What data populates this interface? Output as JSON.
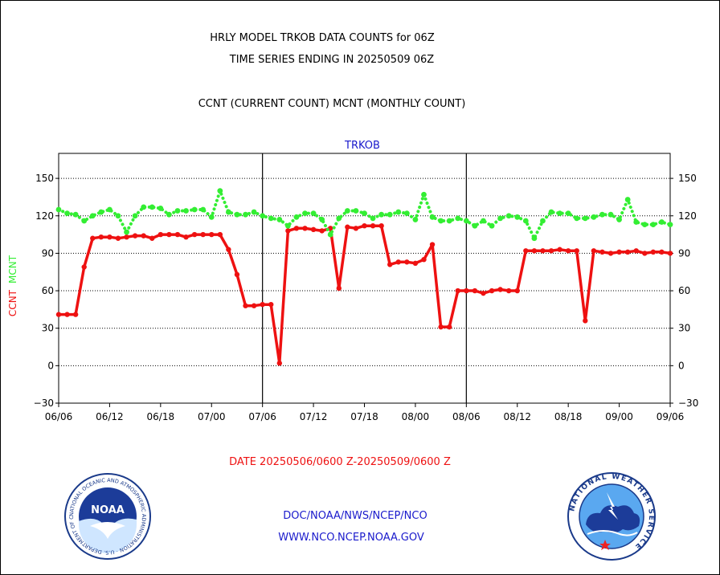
{
  "chart_data": {
    "type": "line",
    "title_lines": [
      "HRLY MODEL TRKOB DATA COUNTS for 06Z",
      "TIME SERIES ENDING IN 20250509 06Z"
    ],
    "subtitle": "CCNT (CURRENT COUNT) MCNT (MONTHLY COUNT)",
    "panel_label": "TRKOB",
    "ylabel_ccnt": "CCNT",
    "ylabel_mcnt": "MCNT",
    "date_range": "DATE 20250506/0600 Z-20250509/0600 Z",
    "ylim": [
      -30,
      170
    ],
    "yticks": [
      -30,
      0,
      30,
      60,
      90,
      120,
      150
    ],
    "ytick_labels": [
      "−30",
      "0",
      "30",
      "60",
      "90",
      "120",
      "150"
    ],
    "xlim": [
      0,
      72
    ],
    "xticks": [
      0,
      6,
      12,
      18,
      24,
      30,
      36,
      42,
      48,
      54,
      60,
      66,
      72
    ],
    "xtick_labels": [
      "06/06",
      "06/12",
      "06/18",
      "07/00",
      "07/06",
      "07/12",
      "07/18",
      "08/00",
      "08/06",
      "08/12",
      "08/18",
      "09/00",
      "09/06"
    ],
    "day_separators": [
      24,
      48
    ],
    "grid": "horizontal dotted",
    "series": [
      {
        "name": "CCNT",
        "color": "#ee1111",
        "style": "solid",
        "x": [
          0,
          1,
          2,
          3,
          4,
          5,
          6,
          7,
          8,
          9,
          10,
          11,
          12,
          13,
          14,
          15,
          16,
          17,
          18,
          19,
          20,
          21,
          22,
          23,
          24,
          25,
          26,
          27,
          28,
          29,
          30,
          31,
          32,
          33,
          34,
          35,
          36,
          37,
          38,
          39,
          40,
          41,
          42,
          43,
          44,
          45,
          46,
          47,
          48,
          49,
          50,
          51,
          52,
          53,
          54,
          55,
          56,
          57,
          58,
          59,
          60,
          61,
          62,
          63,
          64,
          65,
          66,
          67,
          68,
          69,
          70,
          71,
          72
        ],
        "values": [
          41,
          41,
          41,
          79,
          102,
          103,
          103,
          102,
          103,
          104,
          104,
          102,
          105,
          105,
          105,
          103,
          105,
          105,
          105,
          105,
          93,
          73,
          48,
          48,
          49,
          49,
          2,
          108,
          110,
          110,
          109,
          108,
          110,
          62,
          111,
          110,
          112,
          112,
          112,
          81,
          83,
          83,
          82,
          85,
          97,
          31,
          31,
          60,
          60,
          60,
          58,
          60,
          61,
          60,
          60,
          92,
          92,
          92,
          92,
          93,
          92,
          92,
          36,
          92,
          91,
          90,
          91,
          91,
          92,
          90,
          91,
          91,
          90
        ]
      },
      {
        "name": "MCNT",
        "color": "#33ee33",
        "style": "dotted",
        "x": [
          0,
          1,
          2,
          3,
          4,
          5,
          6,
          7,
          8,
          9,
          10,
          11,
          12,
          13,
          14,
          15,
          16,
          17,
          18,
          19,
          20,
          21,
          22,
          23,
          24,
          25,
          26,
          27,
          28,
          29,
          30,
          31,
          32,
          33,
          34,
          35,
          36,
          37,
          38,
          39,
          40,
          41,
          42,
          43,
          44,
          45,
          46,
          47,
          48,
          49,
          50,
          51,
          52,
          53,
          54,
          55,
          56,
          57,
          58,
          59,
          60,
          61,
          62,
          63,
          64,
          65,
          66,
          67,
          68,
          69,
          70,
          71,
          72
        ],
        "values": [
          125,
          122,
          121,
          116,
          120,
          123,
          125,
          120,
          107,
          120,
          127,
          127,
          126,
          121,
          124,
          124,
          125,
          125,
          119,
          140,
          123,
          121,
          121,
          123,
          120,
          118,
          117,
          112,
          119,
          122,
          122,
          117,
          105,
          118,
          124,
          124,
          122,
          118,
          121,
          121,
          123,
          122,
          117,
          137,
          119,
          116,
          116,
          118,
          116,
          112,
          116,
          112,
          118,
          120,
          119,
          116,
          102,
          116,
          123,
          122,
          122,
          118,
          118,
          119,
          121,
          121,
          117,
          133,
          115,
          113,
          113,
          115,
          113
        ]
      }
    ]
  },
  "footer": {
    "links": [
      "DOC/NOAA/NWS/NCEP/NCO",
      "WWW.NCO.NCEP.NOAA.GOV"
    ],
    "noaa_logo": {
      "center_text": "NOAA",
      "ring_text": "NATIONAL OCEANIC AND ATMOSPHERIC ADMINISTRATION · U.S. DEPARTMENT OF COMMERCE ·"
    },
    "nws_logo": {
      "ring_text": "NATIONAL WEATHER SERVICE"
    }
  }
}
